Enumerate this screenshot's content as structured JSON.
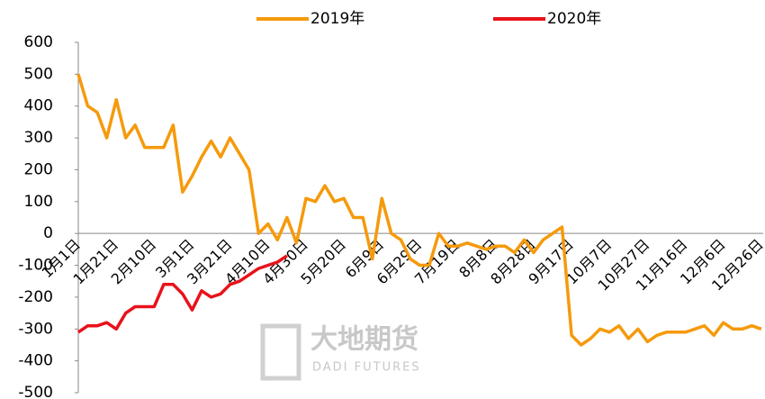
{
  "chart_data": {
    "type": "line",
    "categories": [
      "1月1日",
      null,
      null,
      null,
      "1月21日",
      null,
      null,
      null,
      "2月10日",
      null,
      null,
      null,
      "3月1日",
      null,
      null,
      null,
      "3月21日",
      null,
      null,
      null,
      "4月10日",
      null,
      null,
      null,
      "4月30日",
      null,
      null,
      null,
      "5月20日",
      null,
      null,
      null,
      "6月9日",
      null,
      null,
      null,
      "6月29日",
      null,
      null,
      null,
      "7月19日",
      null,
      null,
      null,
      "8月8日",
      null,
      null,
      null,
      "8月28日",
      null,
      null,
      null,
      "9月17日",
      null,
      null,
      null,
      "10月7日",
      null,
      null,
      null,
      "10月27日",
      null,
      null,
      null,
      "11月16日",
      null,
      null,
      null,
      "12月6日",
      null,
      null,
      null,
      "12月26日"
    ],
    "series": [
      {
        "name": "2019年",
        "color": "#f59a0c",
        "values": [
          500,
          400,
          380,
          300,
          420,
          300,
          340,
          270,
          270,
          270,
          340,
          130,
          180,
          240,
          290,
          240,
          300,
          250,
          200,
          0,
          30,
          -20,
          50,
          -30,
          110,
          100,
          150,
          100,
          110,
          50,
          50,
          -80,
          110,
          0,
          -20,
          -80,
          -100,
          -100,
          0,
          -40,
          -40,
          -30,
          -40,
          -50,
          -40,
          -40,
          -60,
          -20,
          -60,
          -20,
          0,
          20,
          -320,
          -350,
          -330,
          -300,
          -310,
          -290,
          -330,
          -300,
          -340,
          -320,
          -310,
          -310,
          -310,
          -300,
          -290,
          -320,
          -280,
          -300,
          -300,
          -290,
          -300
        ]
      },
      {
        "name": "2020年",
        "color": "#e8121b",
        "values": [
          -310,
          -290,
          -290,
          -280,
          -300,
          -250,
          -230,
          -230,
          -230,
          -160,
          -160,
          -190,
          -240,
          -180,
          -200,
          -190,
          -160,
          -150,
          -130,
          -110,
          -100,
          -90,
          -70,
          null,
          null,
          null,
          null,
          null,
          null,
          null,
          null,
          null,
          null,
          null,
          null,
          null,
          null,
          null,
          null,
          null,
          null,
          null,
          null,
          null,
          null,
          null,
          null,
          null,
          null,
          null,
          null,
          null,
          null,
          null,
          null,
          null,
          null,
          null,
          null,
          null,
          null,
          null,
          null,
          null,
          null,
          null,
          null,
          null,
          null,
          null,
          null,
          null,
          null
        ]
      }
    ],
    "ylim": [
      -500,
      600
    ],
    "yticks": [
      -500,
      -400,
      -300,
      -200,
      -100,
      0,
      100,
      200,
      300,
      400,
      500,
      600
    ],
    "legend": "top",
    "watermark": [
      "大地期货",
      "DADI FUTURES"
    ]
  }
}
